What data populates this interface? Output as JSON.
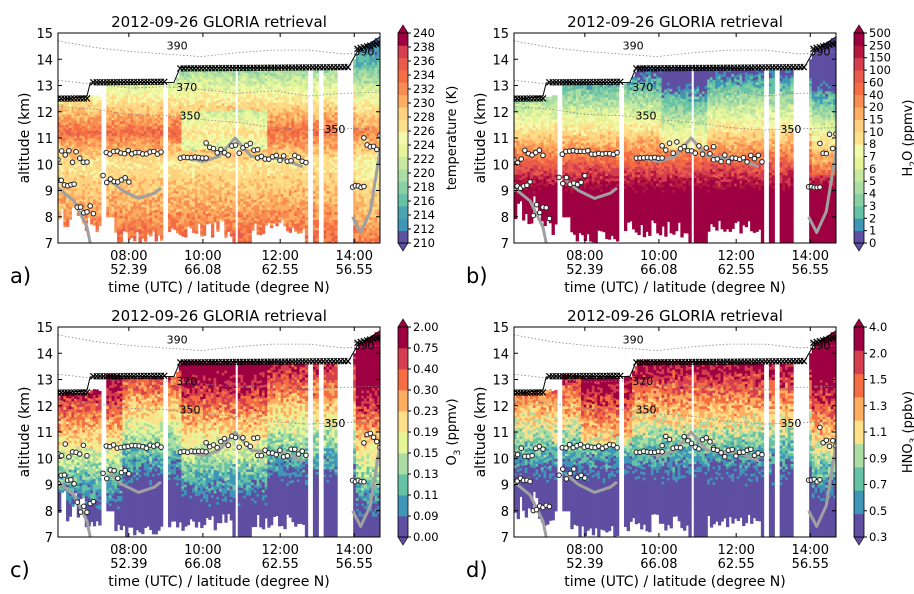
{
  "figure": {
    "xlabel": "time (UTC) / latitude (degree N)",
    "ylabel": "altitude (km)",
    "panel_letters": [
      "a)",
      "b)",
      "c)",
      "d)"
    ]
  },
  "chart_data": [
    {
      "type": "heatmap",
      "panel": "a)",
      "title": "2012-09-26 GLORIA retrieval",
      "xlabel": "time (UTC) / latitude (degree N)",
      "ylabel": "altitude (km)",
      "ylim": [
        7,
        15
      ],
      "yticks": [
        7,
        8,
        9,
        10,
        11,
        12,
        13,
        14,
        15
      ],
      "xticks": [
        {
          "time": "08:00",
          "lat": "52.39"
        },
        {
          "time": "10:00",
          "lat": "66.08"
        },
        {
          "time": "12:00",
          "lat": "62.55"
        },
        {
          "time": "14:00",
          "lat": "56.55"
        }
      ],
      "colorbar_label": "temperature (K)",
      "colorbar_label_sub": "",
      "colorbar_label_post": "",
      "colorbar_ticks": [
        "210",
        "212",
        "214",
        "216",
        "218",
        "220",
        "222",
        "224",
        "226",
        "228",
        "230",
        "232",
        "234",
        "236",
        "238",
        "240"
      ],
      "colors": [
        "#5e4fa2",
        "#3f96b7",
        "#4ba4b1",
        "#66c2a5",
        "#89d0a4",
        "#abdda4",
        "#c8e9a0",
        "#e6f598",
        "#f4faad",
        "#fee08b",
        "#fdd17f",
        "#fdae61",
        "#f88d52",
        "#f46d43",
        "#e85b4a",
        "#d53e4f",
        "#9e0142"
      ],
      "isentrope_labels": [
        {
          "label": "390",
          "t": 0.37,
          "alt": 14.52
        },
        {
          "label": "370",
          "t": 0.4,
          "alt": 12.95
        },
        {
          "label": "350",
          "t": 0.41,
          "alt": 11.85
        },
        {
          "label": "350",
          "t": 0.86,
          "alt": 11.35
        },
        {
          "label": "390",
          "t": 0.95,
          "alt": 14.3
        }
      ],
      "field": "temperature"
    },
    {
      "type": "heatmap",
      "panel": "b)",
      "title": "2012-09-26 GLORIA retrieval",
      "xlabel": "time (UTC) / latitude (degree N)",
      "ylabel": "altitude (km)",
      "ylim": [
        7,
        15
      ],
      "yticks": [
        7,
        8,
        9,
        10,
        11,
        12,
        13,
        14,
        15
      ],
      "xticks": [
        {
          "time": "08:00",
          "lat": "52.39"
        },
        {
          "time": "10:00",
          "lat": "66.08"
        },
        {
          "time": "12:00",
          "lat": "62.55"
        },
        {
          "time": "14:00",
          "lat": "56.55"
        }
      ],
      "colorbar_label": "H",
      "colorbar_label_sub": "2",
      "colorbar_label_post": "O (ppmv)",
      "colorbar_ticks": [
        "0",
        "1",
        "2",
        "3",
        "4",
        "5",
        "6",
        "7",
        "8",
        "10",
        "15",
        "20",
        "40",
        "60",
        "100",
        "150",
        "250",
        "500"
      ],
      "colors": [
        "#5e4fa2",
        "#3f96b7",
        "#66c2a5",
        "#89d0a4",
        "#abdda4",
        "#c8e9a0",
        "#e6f598",
        "#f4faad",
        "#fee08b",
        "#fdd17f",
        "#fdae61",
        "#f88d52",
        "#f46d43",
        "#e85b4a",
        "#d53e4f",
        "#b5173f",
        "#9e0142"
      ],
      "isentrope_labels": [
        {
          "label": "390",
          "t": 0.37,
          "alt": 14.52
        },
        {
          "label": "370",
          "t": 0.4,
          "alt": 12.95
        },
        {
          "label": "350",
          "t": 0.41,
          "alt": 11.85
        },
        {
          "label": "350",
          "t": 0.86,
          "alt": 11.35
        },
        {
          "label": "390",
          "t": 0.95,
          "alt": 14.3
        }
      ],
      "field": "h2o"
    },
    {
      "type": "heatmap",
      "panel": "c)",
      "title": "2012-09-26 GLORIA retrieval",
      "xlabel": "time (UTC) / latitude (degree N)",
      "ylabel": "altitude (km)",
      "ylim": [
        7,
        15
      ],
      "yticks": [
        7,
        8,
        9,
        10,
        11,
        12,
        13,
        14,
        15
      ],
      "xticks": [
        {
          "time": "08:00",
          "lat": "52.39"
        },
        {
          "time": "10:00",
          "lat": "66.08"
        },
        {
          "time": "12:00",
          "lat": "62.55"
        },
        {
          "time": "14:00",
          "lat": "56.55"
        }
      ],
      "colorbar_label": "O",
      "colorbar_label_sub": "3",
      "colorbar_label_post": " (ppmv)",
      "colorbar_ticks": [
        "0.00",
        "0.09",
        "0.11",
        "0.13",
        "0.15",
        "0.19",
        "0.23",
        "0.30",
        "0.40",
        "0.75",
        "2.00"
      ],
      "colors": [
        "#5e4fa2",
        "#3f96b7",
        "#66c2a5",
        "#abdda4",
        "#e6f598",
        "#fee08b",
        "#fdae61",
        "#f46d43",
        "#d53e4f",
        "#9e0142"
      ],
      "isentrope_labels": [
        {
          "label": "390",
          "t": 0.37,
          "alt": 14.52
        },
        {
          "label": "370",
          "t": 0.4,
          "alt": 12.95
        },
        {
          "label": "350",
          "t": 0.41,
          "alt": 11.85
        },
        {
          "label": "350",
          "t": 0.86,
          "alt": 11.35
        },
        {
          "label": "390",
          "t": 0.95,
          "alt": 14.3
        }
      ],
      "field": "o3"
    },
    {
      "type": "heatmap",
      "panel": "d)",
      "title": "2012-09-26 GLORIA retrieval",
      "xlabel": "time (UTC) / latitude (degree N)",
      "ylabel": "altitude (km)",
      "ylim": [
        7,
        15
      ],
      "yticks": [
        7,
        8,
        9,
        10,
        11,
        12,
        13,
        14,
        15
      ],
      "xticks": [
        {
          "time": "08:00",
          "lat": "52.39"
        },
        {
          "time": "10:00",
          "lat": "66.08"
        },
        {
          "time": "12:00",
          "lat": "62.55"
        },
        {
          "time": "14:00",
          "lat": "56.55"
        }
      ],
      "colorbar_label": "HNO",
      "colorbar_label_sub": "3",
      "colorbar_label_post": " (ppbv)",
      "colorbar_ticks": [
        "0.3",
        "0.5",
        "0.7",
        "0.9",
        "1.1",
        "1.3",
        "1.5",
        "2.0",
        "4.0"
      ],
      "colors": [
        "#5e4fa2",
        "#3f96b7",
        "#66c2a5",
        "#abdda4",
        "#fee08b",
        "#fdae61",
        "#f46d43",
        "#d53e4f",
        "#9e0142"
      ],
      "isentrope_labels": [
        {
          "label": "390",
          "t": 0.37,
          "alt": 14.52
        },
        {
          "label": "370",
          "t": 0.4,
          "alt": 12.95
        },
        {
          "label": "350",
          "t": 0.41,
          "alt": 11.85
        },
        {
          "label": "350",
          "t": 0.86,
          "alt": 11.35
        },
        {
          "label": "390",
          "t": 0.95,
          "alt": 14.3
        }
      ],
      "field": "hno3"
    }
  ]
}
